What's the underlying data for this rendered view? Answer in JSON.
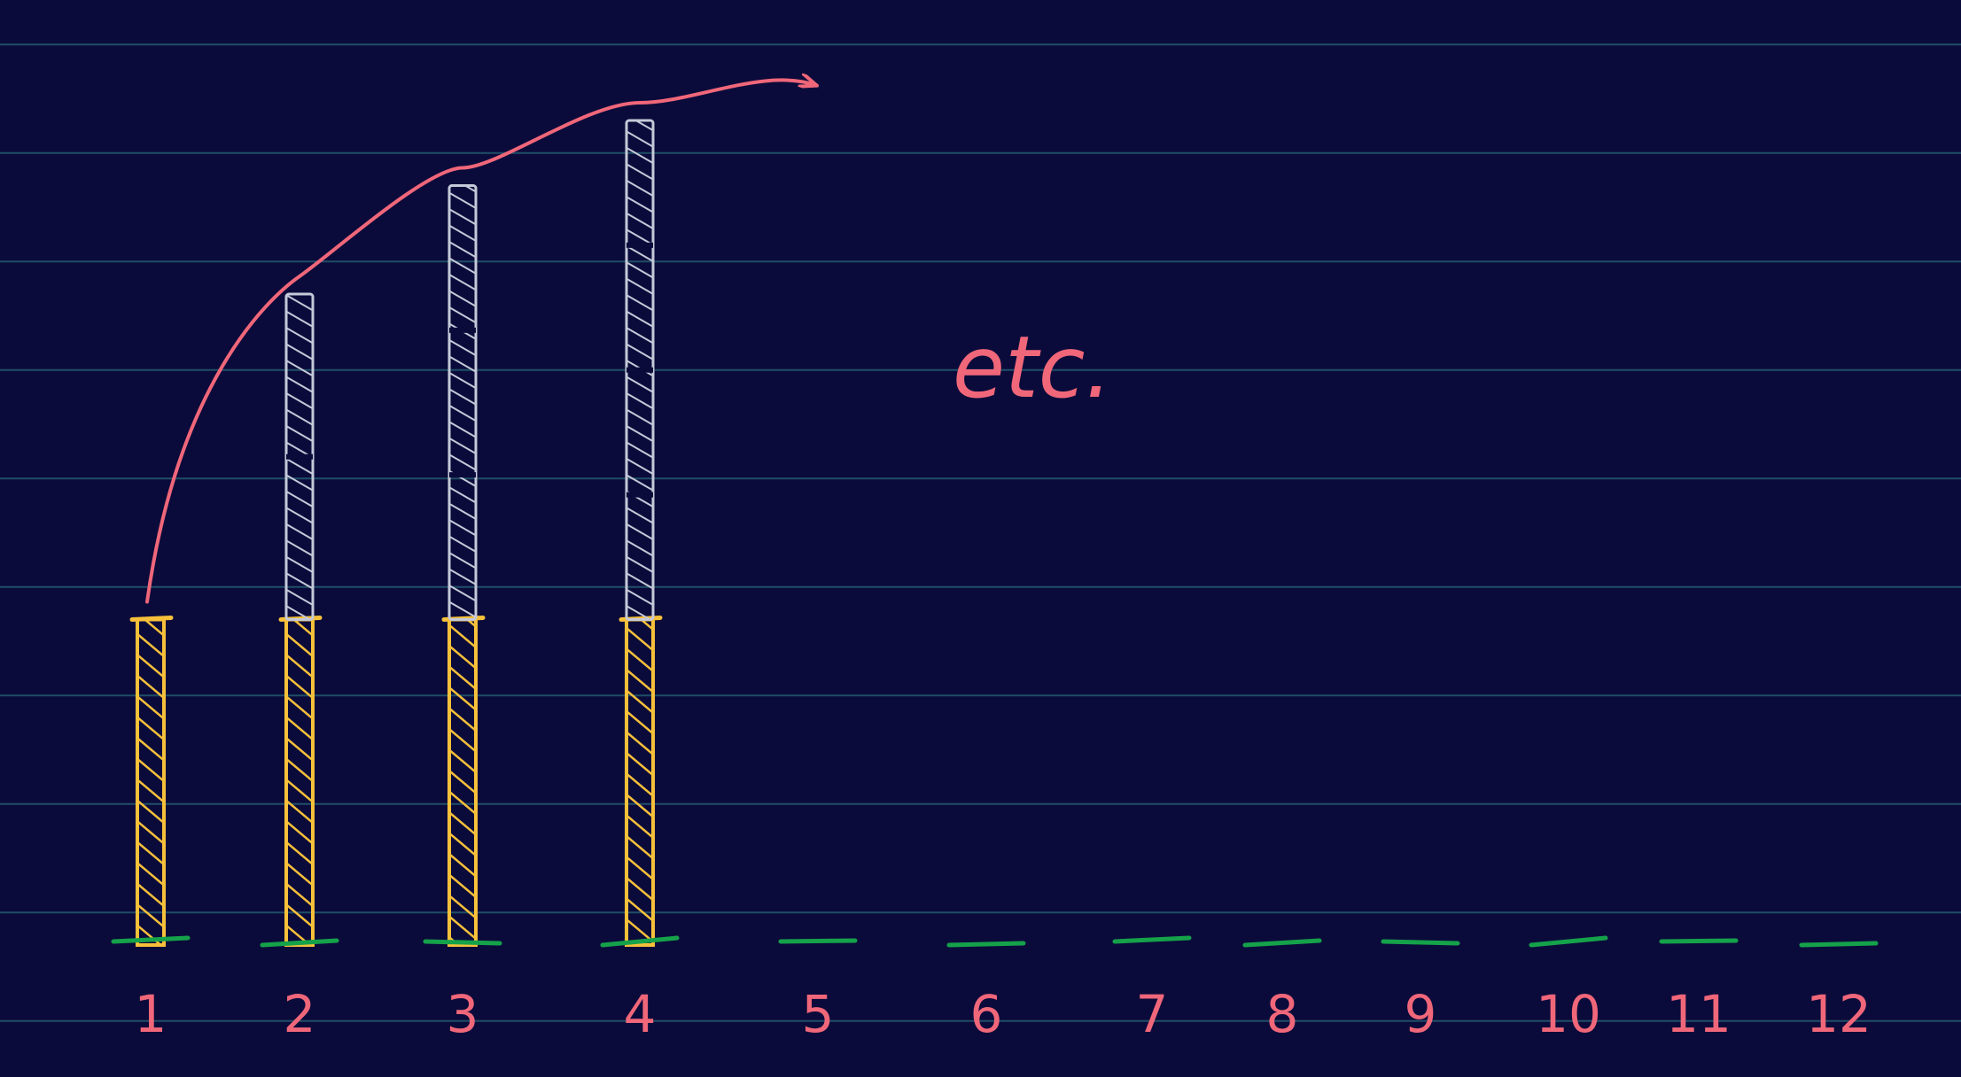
{
  "chart_data": {
    "type": "bar",
    "categories": [
      "1",
      "2",
      "3",
      "4",
      "5",
      "6",
      "7",
      "8",
      "9",
      "10",
      "11",
      "12"
    ],
    "series": [
      {
        "values": [
          3,
          3,
          3,
          3,
          0,
          0,
          0,
          0,
          0,
          0,
          0,
          0
        ]
      },
      {
        "values": [
          0,
          3,
          4,
          4.6,
          0,
          0,
          0,
          0,
          0,
          0,
          0,
          0
        ]
      }
    ],
    "ylim": [
      0,
      8.7
    ],
    "grid": true,
    "annotation": "etc."
  },
  "colors": {
    "background": "#0b0b3b",
    "gridline": "#1f4e66",
    "base_bar": "#f6c03a",
    "stacked_bar": "#c5c9d8",
    "baseline_marks": "#15a24a",
    "labels_and_arrow": "#f0677a"
  }
}
